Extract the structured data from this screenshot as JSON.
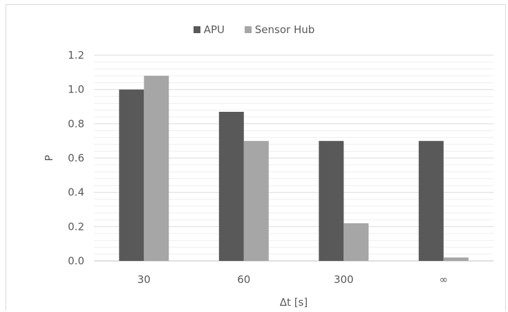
{
  "chart_data": {
    "type": "bar",
    "categories": [
      "30",
      "60",
      "300",
      "∞"
    ],
    "series": [
      {
        "name": "APU",
        "values": [
          1.0,
          0.87,
          0.7,
          0.7
        ]
      },
      {
        "name": "Sensor Hub",
        "values": [
          1.08,
          0.7,
          0.22,
          0.02
        ]
      }
    ],
    "colors": [
      "#595959",
      "#a6a6a6"
    ],
    "xlabel": "Δt [s]",
    "ylabel": "P",
    "ylim": [
      0,
      1.2
    ],
    "yticks": [
      "0.0",
      "0.2",
      "0.4",
      "0.6",
      "0.8",
      "1.0",
      "1.2"
    ],
    "grid": true,
    "legend_position": "top"
  }
}
